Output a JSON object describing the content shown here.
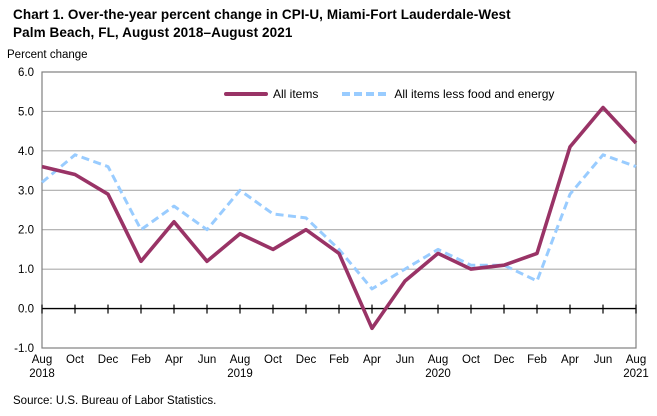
{
  "page": {
    "title_lines": [
      "Chart 1. Over-the-year percent change in CPI-U, Miami-Fort Lauderdale-West",
      "Palm Beach, FL, August 2018–August 2021"
    ],
    "unit_label": "Percent change",
    "source": "Source: U.S. Bureau of Labor Statistics."
  },
  "legend": {
    "all_items_label": "All items",
    "core_label": "All items less food and energy"
  },
  "colors": {
    "all_items": "#993366",
    "core": "#99CCFF",
    "gridline": "#ABABAB",
    "frame": "#808080",
    "axis": "#000000",
    "text": "#000000"
  },
  "chart_data": {
    "type": "line",
    "title": "Chart 1. Over-the-year percent change in CPI-U, Miami-Fort Lauderdale-West Palm Beach, FL, August 2018–August 2021",
    "xlabel": "",
    "ylabel": "Percent change",
    "ylim": [
      -1.0,
      6.0
    ],
    "grid": true,
    "legend_position": "top-center-inside",
    "y_ticks": [
      "6.0",
      "5.0",
      "4.0",
      "3.0",
      "2.0",
      "1.0",
      "0.0",
      "-1.0"
    ],
    "x_ticks": [
      {
        "month": "Aug",
        "year": "2018"
      },
      {
        "month": "Oct"
      },
      {
        "month": "Dec"
      },
      {
        "month": "Feb"
      },
      {
        "month": "Apr"
      },
      {
        "month": "Jun"
      },
      {
        "month": "Aug",
        "year": "2019"
      },
      {
        "month": "Oct"
      },
      {
        "month": "Dec"
      },
      {
        "month": "Feb"
      },
      {
        "month": "Apr"
      },
      {
        "month": "Jun"
      },
      {
        "month": "Aug",
        "year": "2020"
      },
      {
        "month": "Oct"
      },
      {
        "month": "Dec"
      },
      {
        "month": "Feb"
      },
      {
        "month": "Apr"
      },
      {
        "month": "Jun"
      },
      {
        "month": "Aug",
        "year": "2021"
      }
    ],
    "series": [
      {
        "name": "All items",
        "style": "solid",
        "color": "#993366",
        "values": [
          3.6,
          3.4,
          2.9,
          1.2,
          2.2,
          1.2,
          1.9,
          1.5,
          2.0,
          1.4,
          -0.5,
          0.7,
          1.4,
          1.0,
          1.1,
          1.4,
          4.1,
          5.1,
          4.2
        ]
      },
      {
        "name": "All items less food and energy",
        "style": "dashed",
        "color": "#99CCFF",
        "values": [
          3.2,
          3.9,
          3.6,
          2.0,
          2.6,
          2.0,
          3.0,
          2.4,
          2.3,
          1.5,
          0.5,
          1.0,
          1.5,
          1.1,
          1.1,
          0.7,
          2.9,
          3.9,
          3.6
        ]
      }
    ]
  }
}
